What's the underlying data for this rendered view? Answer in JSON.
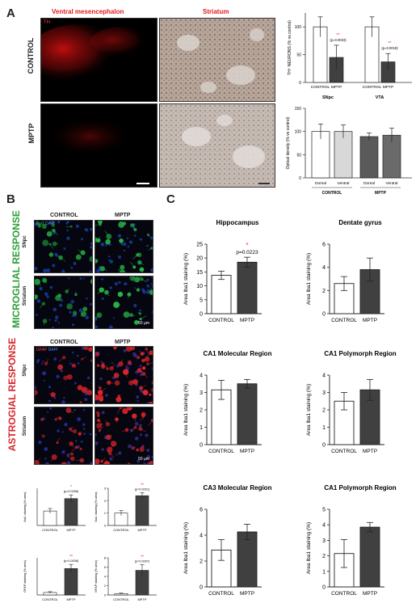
{
  "panelA": {
    "letter": "A",
    "col_ventral": "Ventral mesencephalon",
    "col_striatum": "Striatum",
    "row_control": "CONTROL",
    "row_mptp": "MPTP",
    "stain_th": "TH",
    "neurons_chart": {
      "ylabel": "TH⁺ NEURONS (% vs control)",
      "groups": [
        "SNpc",
        "VTA"
      ],
      "categories": [
        "CONTROL",
        "MPTP"
      ],
      "bars": [
        {
          "group": "SNpc",
          "category": "CONTROL",
          "value": 100,
          "err": 18
        },
        {
          "group": "SNpc",
          "category": "MPTP",
          "value": 45,
          "err": 22,
          "stars": "**",
          "p": "(p=0.0033)"
        },
        {
          "group": "VTA",
          "category": "CONTROL",
          "value": 100,
          "err": 18
        },
        {
          "group": "VTA",
          "category": "MPTP",
          "value": 37,
          "err": 15,
          "stars": "**",
          "p": "(p=0.0018)"
        }
      ],
      "yticks": [
        "0",
        "50",
        "100"
      ]
    },
    "density_chart": {
      "ylabel": "Optical density (% vs control)",
      "categories": [
        "Dorsal",
        "Ventral",
        "Dorsal",
        "Ventral"
      ],
      "groups": [
        "CONTROL",
        "MPTP"
      ],
      "values": [
        100,
        100,
        89,
        92
      ],
      "errs": [
        16,
        14,
        8,
        15
      ],
      "yticks": [
        "0",
        "50",
        "100",
        "150"
      ]
    }
  },
  "panelB": {
    "letter": "B",
    "microglial_label": "MICROGLIAL RESPONSE",
    "astrogial_label": "ASTROGIAL RESPONSE",
    "col_control": "CONTROL",
    "col_mptp": "MPTP",
    "row_snpc": "SNpc",
    "row_striatum": "Striatum",
    "iba1_legend_a": "Iba1",
    "iba1_legend_b": "DAPI",
    "gfap_legend_a": "GFAP",
    "gfap_legend_b": "DAPI",
    "scale_bar": "50 µm",
    "small_charts": [
      {
        "ylabel": "Iba1 staining (% area)",
        "values": [
          3.5,
          6.5
        ],
        "errs": [
          0.6,
          0.9
        ],
        "ymax": 9,
        "yticks": [],
        "stars": "*",
        "p": "(p=0.0266)",
        "categories": [
          "CONTROL",
          "MPTP"
        ]
      },
      {
        "ylabel": "Iba1 staining (% area)",
        "values": [
          1.0,
          2.4
        ],
        "errs": [
          0.2,
          0.25
        ],
        "ymax": 3,
        "yticks": [
          "0",
          "1",
          "2",
          "3"
        ],
        "stars": "**",
        "p": "(p=0.0021)",
        "categories": [
          "CONTROL",
          "MPTP"
        ]
      },
      {
        "ylabel": "GFAP staining (% area)",
        "values": [
          3,
          32
        ],
        "errs": [
          1,
          5
        ],
        "ymax": 45,
        "yticks": [],
        "stars": "**",
        "p": "(p=0.0008)",
        "categories": [
          "CONTROL",
          "MPTP"
        ]
      },
      {
        "ylabel": "GFAP staining (% area)",
        "values": [
          0.3,
          5.3
        ],
        "errs": [
          0.1,
          1.2
        ],
        "ymax": 8,
        "yticks": [
          "0",
          "2",
          "4",
          "6",
          "8"
        ],
        "stars": "**",
        "p": "(p=0.0007)",
        "categories": [
          "CONTROL",
          "MPTP"
        ]
      }
    ]
  },
  "panelC": {
    "letter": "C",
    "ylabel": "Area Iba1 staining (%)",
    "charts": [
      {
        "title": "Hippocampus",
        "type": "bar",
        "categories": [
          "CONTROL",
          "MPTP"
        ],
        "values": [
          13.8,
          18.5
        ],
        "errs": [
          1.5,
          1.8
        ],
        "ylim": [
          0,
          25
        ],
        "yticks": [
          "0",
          "5",
          "10",
          "15",
          "20",
          "25"
        ],
        "stars": "*",
        "p": "p=0.0223"
      },
      {
        "title": "Dentate gyrus",
        "type": "bar",
        "categories": [
          "CONTROL",
          "MPTP"
        ],
        "values": [
          2.6,
          3.8
        ],
        "errs": [
          0.6,
          1.0
        ],
        "ylim": [
          0,
          6
        ],
        "yticks": [
          "0",
          "2",
          "4",
          "6"
        ]
      },
      {
        "title": "CA1 Molecular Region",
        "type": "bar",
        "categories": [
          "CONTROL",
          "MPTP"
        ],
        "values": [
          3.15,
          3.5
        ],
        "errs": [
          0.55,
          0.25
        ],
        "ylim": [
          0,
          4
        ],
        "yticks": [
          "0",
          "1",
          "2",
          "3",
          "4"
        ]
      },
      {
        "title": "CA1 Polymorph Region",
        "type": "bar",
        "categories": [
          "CONTROL",
          "MPTP"
        ],
        "values": [
          2.5,
          3.15
        ],
        "errs": [
          0.5,
          0.6
        ],
        "ylim": [
          0,
          4
        ],
        "yticks": [
          "0",
          "1",
          "2",
          "3",
          "4"
        ]
      },
      {
        "title": "CA3 Molecular Region",
        "type": "bar",
        "categories": [
          "CONTROL",
          "MPTP"
        ],
        "values": [
          2.85,
          4.25
        ],
        "errs": [
          0.8,
          0.6
        ],
        "ylim": [
          0,
          6
        ],
        "yticks": [
          "0",
          "2",
          "4",
          "6"
        ]
      },
      {
        "title": "CA1 Polymorph Region",
        "type": "bar",
        "categories": [
          "CONTROL",
          "MPTP"
        ],
        "values": [
          2.15,
          3.85
        ],
        "errs": [
          0.9,
          0.3
        ],
        "ylim": [
          0,
          5
        ],
        "yticks": [
          "0",
          "1",
          "2",
          "3",
          "4",
          "5"
        ]
      }
    ]
  },
  "colors": {
    "bar_control": "#ffffff",
    "bar_mptp": "#404040",
    "star_red": "#e0302a",
    "microglial_green": "#2e9e3a",
    "astrogial_red": "#d8262c",
    "th_red": "#e11a1a"
  }
}
